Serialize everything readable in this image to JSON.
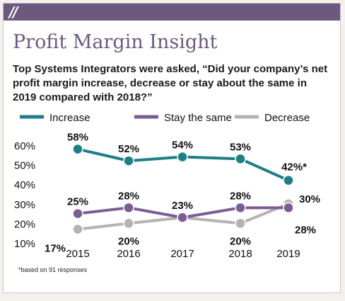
{
  "header": {
    "slashes": "//"
  },
  "title": "Profit Margin Insight",
  "subtitle": "Top Systems Integrators were asked, “Did your company’s net profit margin increase, decrease or stay about the same in 2019 compared with 2018?”",
  "footnote": "*based on 91 responses",
  "colors": {
    "brand": "#6b5a7e",
    "increase": "#1e7f86",
    "same": "#7a5e93",
    "decrease": "#b3b3b3"
  },
  "chart_data": {
    "type": "line",
    "x": [
      "2015",
      "2016",
      "2017",
      "2018",
      "2019"
    ],
    "ylim": [
      10,
      60
    ],
    "yticks": [
      "10%",
      "20%",
      "30%",
      "40%",
      "50%",
      "60%"
    ],
    "xlabel": "",
    "ylabel": "",
    "legend_position": "top",
    "grid": false,
    "series": [
      {
        "name": "Increase",
        "color": "#1e7f86",
        "values": [
          58,
          52,
          54,
          53,
          42
        ],
        "labels": [
          "58%",
          "52%",
          "54%",
          "53%",
          "42%*"
        ]
      },
      {
        "name": "Stay the same",
        "color": "#7a5e93",
        "values": [
          25,
          28,
          23,
          28,
          28
        ],
        "labels": [
          "25%",
          "28%",
          "23%",
          "28%",
          "28%"
        ]
      },
      {
        "name": "Decrease",
        "color": "#b3b3b3",
        "values": [
          17,
          20,
          23,
          20,
          30
        ],
        "labels": [
          "17%",
          "20%",
          "",
          "20%",
          "30%"
        ]
      }
    ]
  }
}
